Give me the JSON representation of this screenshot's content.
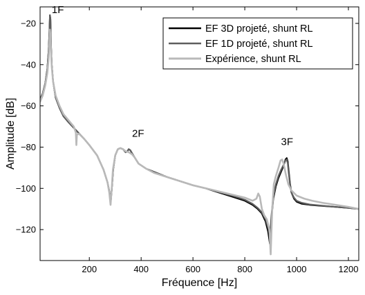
{
  "chart_data": {
    "type": "line",
    "xlabel": "Fréquence [Hz]",
    "ylabel": "Amplitude [dB]",
    "xlim": [
      10,
      1240
    ],
    "ylim": [
      -135,
      -12
    ],
    "xticks": [
      200,
      400,
      600,
      800,
      1000,
      1200
    ],
    "yticks": [
      -20,
      -40,
      -60,
      -80,
      -100,
      -120
    ],
    "grid": false,
    "legend": "top-right",
    "series": [
      {
        "name": "EF 3D projeté, shunt RL",
        "color": "#000000",
        "width": 2.2,
        "x": [
          10,
          20,
          30,
          38,
          43,
          46,
          48,
          50,
          52,
          55,
          60,
          70,
          85,
          100,
          120,
          150,
          180,
          200,
          230,
          255,
          270,
          278,
          283,
          287,
          292,
          300,
          310,
          320,
          330,
          340,
          347,
          352,
          358,
          365,
          375,
          390,
          420,
          450,
          500,
          550,
          600,
          650,
          700,
          750,
          800,
          830,
          850,
          865,
          880,
          890,
          897,
          903,
          910,
          920,
          930,
          940,
          950,
          957,
          962,
          966,
          970,
          975,
          980,
          990,
          1000,
          1020,
          1050,
          1100,
          1150,
          1200,
          1240
        ],
        "y": [
          -57,
          -54,
          -49,
          -42,
          -33,
          -24,
          -16,
          -18,
          -30,
          -40,
          -48,
          -56,
          -61,
          -65,
          -68,
          -72,
          -76,
          -79,
          -84,
          -91,
          -97,
          -102,
          -106,
          -100,
          -91,
          -84,
          -81,
          -80.5,
          -81,
          -82.5,
          -82,
          -81,
          -81.5,
          -83,
          -85,
          -88,
          -90.5,
          -92,
          -94.5,
          -96.5,
          -98.5,
          -100,
          -102,
          -104,
          -106,
          -108,
          -110,
          -112,
          -116,
          -121,
          -127,
          -115,
          -105,
          -99,
          -95,
          -92,
          -89,
          -86,
          -85.3,
          -87,
          -92,
          -98,
          -102,
          -105,
          -106.5,
          -107.5,
          -108,
          -108.5,
          -109,
          -109.5,
          -110
        ]
      },
      {
        "name": "EF 1D projeté, shunt RL",
        "color": "#5e5e5e",
        "width": 2.2,
        "x": [
          10,
          20,
          30,
          38,
          43,
          46,
          48,
          50,
          52,
          55,
          60,
          70,
          85,
          100,
          120,
          150,
          180,
          200,
          230,
          255,
          270,
          278,
          283,
          287,
          292,
          300,
          310,
          320,
          330,
          340,
          347,
          352,
          358,
          365,
          375,
          390,
          420,
          450,
          500,
          550,
          600,
          650,
          700,
          750,
          800,
          830,
          850,
          865,
          880,
          890,
          897,
          903,
          910,
          920,
          930,
          940,
          950,
          957,
          962,
          966,
          970,
          975,
          980,
          990,
          1000,
          1020,
          1050,
          1100,
          1150,
          1200,
          1240
        ],
        "y": [
          -57,
          -54,
          -49,
          -42,
          -33,
          -24,
          -16,
          -18,
          -30,
          -40,
          -48,
          -56,
          -61,
          -65,
          -68,
          -72,
          -76,
          -79,
          -84,
          -91,
          -97,
          -102,
          -106,
          -100,
          -91,
          -84,
          -81,
          -80.5,
          -81,
          -82.5,
          -82,
          -81,
          -81.5,
          -83,
          -85,
          -88,
          -90.5,
          -92,
          -94.5,
          -96.5,
          -98.5,
          -100,
          -101.8,
          -103.5,
          -105.5,
          -107.5,
          -109.5,
          -111.5,
          -115,
          -119,
          -123,
          -113,
          -104,
          -98,
          -94,
          -91,
          -88.5,
          -86.5,
          -86,
          -88,
          -93,
          -98.5,
          -102,
          -104.5,
          -106,
          -107,
          -107.8,
          -108.4,
          -109,
          -109.5,
          -110
        ]
      },
      {
        "name": "Expérience, shunt RL",
        "color": "#b9b9b9",
        "width": 2.6,
        "x": [
          10,
          20,
          30,
          38,
          43,
          46,
          48,
          50,
          52,
          55,
          60,
          70,
          85,
          100,
          120,
          140,
          148,
          150,
          152,
          160,
          180,
          200,
          230,
          255,
          270,
          277,
          282,
          286,
          291,
          300,
          310,
          320,
          330,
          340,
          352,
          365,
          375,
          390,
          420,
          450,
          500,
          550,
          600,
          650,
          700,
          750,
          800,
          830,
          845,
          852,
          858,
          866,
          875,
          885,
          895,
          900,
          906,
          912,
          920,
          930,
          938,
          944,
          950,
          958,
          968,
          980,
          1000,
          1030,
          1060,
          1100,
          1150,
          1200,
          1240
        ],
        "y": [
          -58,
          -55,
          -50,
          -44,
          -37,
          -29,
          -23,
          -26,
          -33,
          -41,
          -48,
          -55,
          -60,
          -64,
          -67,
          -70,
          -73,
          -79,
          -74,
          -73.5,
          -76,
          -79,
          -84,
          -91,
          -97,
          -102,
          -108,
          -101,
          -91,
          -84,
          -81,
          -80.5,
          -81,
          -82,
          -82.5,
          -83.5,
          -85,
          -88,
          -90.5,
          -92.5,
          -94.5,
          -96.5,
          -98.5,
          -100,
          -101.5,
          -103,
          -104.5,
          -106,
          -105,
          -102.5,
          -104,
          -110,
          -113,
          -115,
          -120,
          -132,
          -110,
          -98,
          -94,
          -90,
          -86.5,
          -86,
          -88,
          -93,
          -98,
          -101,
          -103.5,
          -105,
          -106,
          -107,
          -108,
          -109,
          -110
        ]
      }
    ],
    "annotations": [
      {
        "text": "1F",
        "x": 55,
        "y": -15
      },
      {
        "text": "2F",
        "x": 365,
        "y": -75
      },
      {
        "text": "3F",
        "x": 940,
        "y": -79
      }
    ]
  }
}
